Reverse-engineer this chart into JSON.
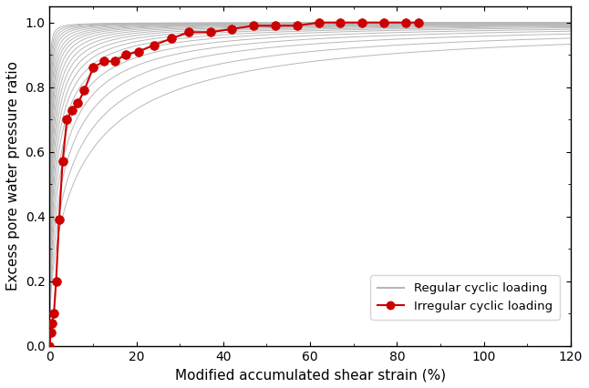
{
  "title": "",
  "xlabel": "Modified accumulated shear strain (%)",
  "ylabel": "Excess pore water pressure ratio",
  "xlim": [
    0,
    120
  ],
  "ylim": [
    0,
    1.05
  ],
  "xticks": [
    0,
    20,
    40,
    60,
    80,
    100,
    120
  ],
  "yticks": [
    0,
    0.2,
    0.4,
    0.6,
    0.8,
    1.0
  ],
  "bg_color": "#ffffff",
  "regular_color": "#b8b8b8",
  "irregular_color": "#cc0000",
  "regular_alphas": [
    0.08,
    0.12,
    0.17,
    0.23,
    0.3,
    0.4,
    0.52,
    0.65,
    0.8,
    1.0,
    1.25,
    1.55,
    1.9,
    2.35,
    2.9,
    3.6,
    4.5,
    5.8,
    7.5,
    10.0,
    14.0,
    20.0
  ],
  "curve_power": 0.45,
  "irregular_x": [
    0.0,
    0.3,
    0.6,
    1.0,
    1.5,
    2.2,
    3.0,
    4.0,
    5.2,
    6.5,
    8.0,
    10.0,
    12.5,
    15.0,
    17.5,
    20.5,
    24.0,
    28.0,
    32.0,
    37.0,
    42.0,
    47.0,
    52.0,
    57.0,
    62.0,
    67.0,
    72.0,
    77.0,
    82.0,
    85.0
  ],
  "irregular_y": [
    0.0,
    0.04,
    0.07,
    0.1,
    0.2,
    0.39,
    0.57,
    0.7,
    0.73,
    0.75,
    0.79,
    0.86,
    0.88,
    0.88,
    0.9,
    0.91,
    0.93,
    0.95,
    0.97,
    0.97,
    0.98,
    0.99,
    0.99,
    0.99,
    1.0,
    1.0,
    1.0,
    1.0,
    1.0,
    1.0
  ]
}
